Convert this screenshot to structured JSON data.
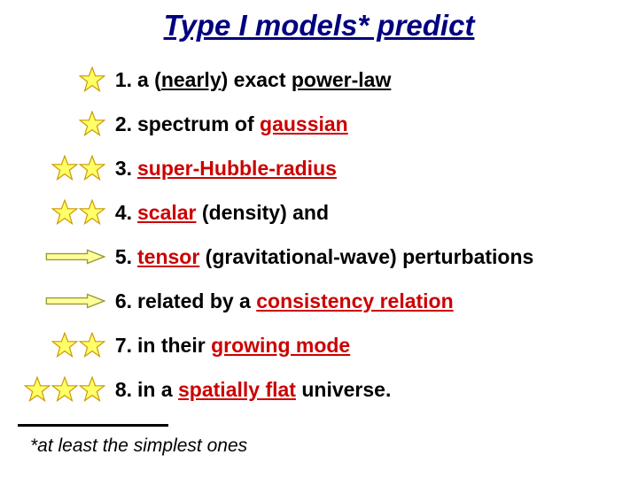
{
  "title": "Type I models* predict",
  "colors": {
    "title": "#000080",
    "keyword_red": "#cc0000",
    "star_fill": "#ffff66",
    "star_stroke": "#cc9900",
    "arrow_fill": "#ffff99",
    "arrow_stroke": "#999933",
    "text": "#000000",
    "background": "#ffffff"
  },
  "items": [
    {
      "icon_type": "star",
      "icon_count": 1,
      "num": "1.",
      "segments": [
        {
          "t": "a ("
        },
        {
          "t": "nearly",
          "u": true
        },
        {
          "t": ") exact "
        },
        {
          "t": "power-law",
          "u": true
        }
      ]
    },
    {
      "icon_type": "star",
      "icon_count": 1,
      "num": "2.",
      "segments": [
        {
          "t": "spectrum of "
        },
        {
          "t": "gaussian",
          "u": true,
          "red": true
        }
      ]
    },
    {
      "icon_type": "star",
      "icon_count": 2,
      "num": "3.",
      "segments": [
        {
          "t": "super-Hubble-radius",
          "u": true,
          "red": true
        }
      ]
    },
    {
      "icon_type": "star",
      "icon_count": 2,
      "num": "4.",
      "segments": [
        {
          "t": "scalar",
          "u": true,
          "red": true
        },
        {
          "t": " (density) and"
        }
      ]
    },
    {
      "icon_type": "arrow",
      "icon_count": 1,
      "num": "5.",
      "segments": [
        {
          "t": "tensor",
          "u": true,
          "red": true
        },
        {
          "t": " (gravitational-wave) perturbations"
        }
      ]
    },
    {
      "icon_type": "arrow",
      "icon_count": 1,
      "num": "6.",
      "segments": [
        {
          "t": "related by a "
        },
        {
          "t": "consistency relation",
          "u": true,
          "red": true
        }
      ]
    },
    {
      "icon_type": "star",
      "icon_count": 2,
      "num": "7.",
      "segments": [
        {
          "t": "in their "
        },
        {
          "t": "growing mode",
          "u": true,
          "red": true
        }
      ]
    },
    {
      "icon_type": "star",
      "icon_count": 3,
      "num": "8.",
      "segments": [
        {
          "t": "in a "
        },
        {
          "t": "spatially flat",
          "u": true,
          "red": true
        },
        {
          "t": " universe."
        }
      ]
    }
  ],
  "footnote": "*at least the simplest ones"
}
